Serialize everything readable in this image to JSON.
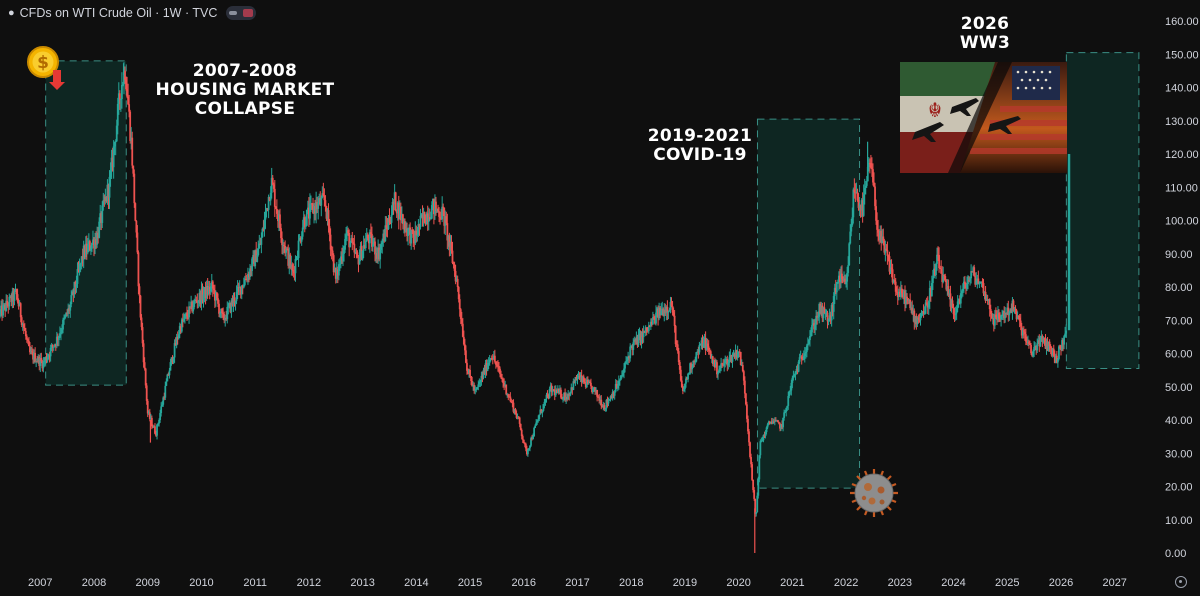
{
  "header": {
    "title": "CFDs on WTI Crude Oil · 1W · TVC"
  },
  "colors": {
    "background": "#0f0f0f",
    "up": "#26a69a",
    "down": "#ef5350",
    "zone_fill": "#0e2a26",
    "zone_border": "#3a8f85",
    "axis_text": "#d1d4dc"
  },
  "icons": [
    "dollar-down-icon",
    "covid-virus-icon",
    "iran-usa-flags-image",
    "settings-icon"
  ],
  "annotations": {
    "housing": [
      "2007-2008",
      "HOUSING MARKET",
      "COLLAPSE"
    ],
    "covid": [
      "2019-2021",
      "COVID-19"
    ],
    "ww3": [
      "2026",
      "WW3"
    ]
  },
  "chart_data": {
    "type": "candlestick",
    "title": "CFDs on WTI Crude Oil · 1W · TVC",
    "xlabel": "",
    "ylabel": "",
    "ylim": [
      0,
      160
    ],
    "xlim": [
      2006.25,
      2027.75
    ],
    "y_ticks": [
      "0.00",
      "10.00",
      "20.00",
      "30.00",
      "40.00",
      "50.00",
      "60.00",
      "70.00",
      "80.00",
      "90.00",
      "100.00",
      "110.00",
      "120.00",
      "130.00",
      "140.00",
      "150.00",
      "160.00"
    ],
    "x_ticks": [
      "2007",
      "2008",
      "2009",
      "2010",
      "2011",
      "2012",
      "2013",
      "2014",
      "2015",
      "2016",
      "2017",
      "2018",
      "2019",
      "2020",
      "2021",
      "2022",
      "2023",
      "2024",
      "2025",
      "2026",
      "2027"
    ],
    "series_anchor_points": [
      [
        2006.25,
        72
      ],
      [
        2006.55,
        78
      ],
      [
        2006.8,
        60
      ],
      [
        2007.05,
        57
      ],
      [
        2007.3,
        64
      ],
      [
        2007.55,
        74
      ],
      [
        2007.8,
        90
      ],
      [
        2008.05,
        95
      ],
      [
        2008.3,
        112
      ],
      [
        2008.5,
        140
      ],
      [
        2008.58,
        146
      ],
      [
        2008.7,
        122
      ],
      [
        2008.85,
        75
      ],
      [
        2009.0,
        42
      ],
      [
        2009.15,
        36
      ],
      [
        2009.4,
        55
      ],
      [
        2009.6,
        68
      ],
      [
        2009.9,
        76
      ],
      [
        2010.2,
        80
      ],
      [
        2010.4,
        70
      ],
      [
        2010.6,
        76
      ],
      [
        2010.9,
        85
      ],
      [
        2011.1,
        93
      ],
      [
        2011.3,
        112
      ],
      [
        2011.5,
        95
      ],
      [
        2011.7,
        84
      ],
      [
        2011.9,
        100
      ],
      [
        2012.1,
        104
      ],
      [
        2012.3,
        106
      ],
      [
        2012.5,
        82
      ],
      [
        2012.7,
        96
      ],
      [
        2012.9,
        88
      ],
      [
        2013.1,
        95
      ],
      [
        2013.3,
        90
      ],
      [
        2013.6,
        106
      ],
      [
        2013.8,
        98
      ],
      [
        2013.95,
        94
      ],
      [
        2014.1,
        100
      ],
      [
        2014.3,
        104
      ],
      [
        2014.5,
        102
      ],
      [
        2014.75,
        82
      ],
      [
        2014.95,
        55
      ],
      [
        2015.1,
        48
      ],
      [
        2015.4,
        60
      ],
      [
        2015.6,
        52
      ],
      [
        2015.9,
        40
      ],
      [
        2016.05,
        30
      ],
      [
        2016.3,
        42
      ],
      [
        2016.5,
        49
      ],
      [
        2016.8,
        47
      ],
      [
        2017.0,
        53
      ],
      [
        2017.3,
        49
      ],
      [
        2017.5,
        44
      ],
      [
        2017.8,
        52
      ],
      [
        2018.0,
        62
      ],
      [
        2018.3,
        67
      ],
      [
        2018.5,
        72
      ],
      [
        2018.75,
        75
      ],
      [
        2018.95,
        48
      ],
      [
        2019.1,
        56
      ],
      [
        2019.35,
        64
      ],
      [
        2019.6,
        55
      ],
      [
        2019.8,
        58
      ],
      [
        2020.0,
        61
      ],
      [
        2020.1,
        52
      ],
      [
        2020.25,
        22
      ],
      [
        2020.32,
        10
      ],
      [
        2020.4,
        33
      ],
      [
        2020.6,
        40
      ],
      [
        2020.8,
        38
      ],
      [
        2021.0,
        52
      ],
      [
        2021.2,
        60
      ],
      [
        2021.5,
        73
      ],
      [
        2021.7,
        70
      ],
      [
        2021.85,
        83
      ],
      [
        2022.0,
        80
      ],
      [
        2022.15,
        110
      ],
      [
        2022.3,
        103
      ],
      [
        2022.45,
        118
      ],
      [
        2022.6,
        96
      ],
      [
        2022.8,
        87
      ],
      [
        2022.95,
        78
      ],
      [
        2023.1,
        77
      ],
      [
        2023.3,
        70
      ],
      [
        2023.5,
        74
      ],
      [
        2023.7,
        88
      ],
      [
        2023.85,
        80
      ],
      [
        2024.0,
        72
      ],
      [
        2024.2,
        80
      ],
      [
        2024.35,
        84
      ],
      [
        2024.55,
        80
      ],
      [
        2024.75,
        70
      ],
      [
        2024.95,
        72
      ],
      [
        2025.1,
        74
      ],
      [
        2025.3,
        66
      ],
      [
        2025.45,
        60
      ],
      [
        2025.6,
        64
      ],
      [
        2025.8,
        62
      ],
      [
        2025.9,
        58
      ],
      [
        2026.0,
        62
      ],
      [
        2026.1,
        67
      ]
    ],
    "spike_2026": [
      2026.15,
      67,
      120
    ],
    "extremes": [
      {
        "x": 2008.55,
        "high": 147.3
      },
      {
        "x": 2009.05,
        "low": 33.2
      },
      {
        "x": 2020.3,
        "low": 0.0
      },
      {
        "x": 2022.4,
        "high": 123.7
      }
    ],
    "highlight_zones": [
      {
        "name": "2007-2008 Housing Market Collapse",
        "x_start": 2007.1,
        "x_end": 2008.6,
        "y_low": 50.5,
        "y_high": 148
      },
      {
        "name": "2019-2021 COVID-19",
        "x_start": 2020.35,
        "x_end": 2022.25,
        "y_low": 19.5,
        "y_high": 130.5
      },
      {
        "name": "2026 WW3",
        "x_start": 2026.1,
        "x_end": 2027.45,
        "y_low": 55.5,
        "y_high": 150.5
      }
    ]
  }
}
